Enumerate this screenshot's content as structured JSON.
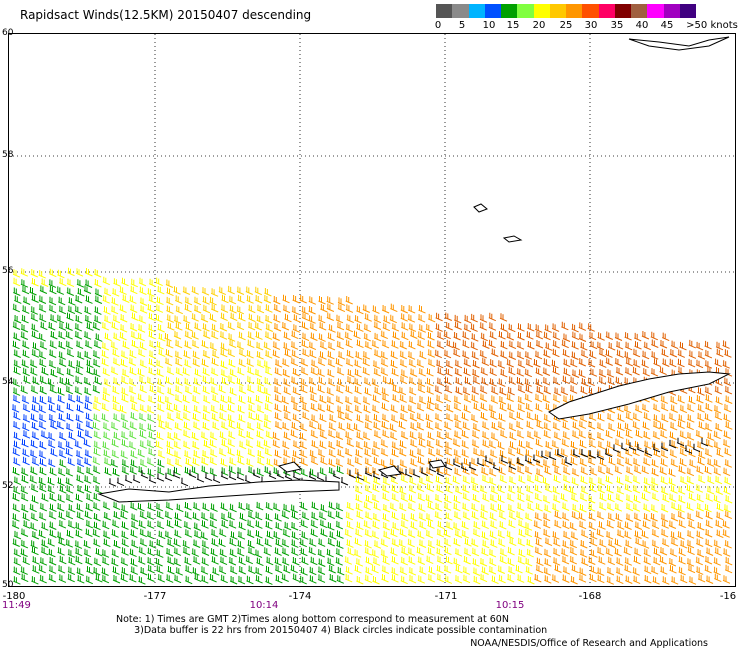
{
  "title": "Rapidsact Winds(12.5KM) 20150407 descending",
  "colorbar": {
    "colors": [
      "#555555",
      "#8a8a8a",
      "#00b4ff",
      "#0050ff",
      "#00a000",
      "#80ff40",
      "#ffff00",
      "#ffc800",
      "#ff9600",
      "#ff5000",
      "#ff0064",
      "#800000",
      "#a06040",
      "#ff00ff",
      "#a000c0",
      "#400080"
    ],
    "labels": [
      "0",
      "5",
      "10",
      "15",
      "20",
      "25",
      "30",
      "35",
      "40",
      "45",
      ">50 knots"
    ]
  },
  "lat_labels": [
    "60",
    "58",
    "56",
    "54",
    "52",
    "50"
  ],
  "lon_labels": [
    "-180",
    "-177",
    "-174",
    "-171",
    "-168",
    "-16"
  ],
  "time_labels": {
    "left": "11:49",
    "t1": "10:14",
    "t2": "10:15"
  },
  "notes": "Note: 1) Times are GMT 2)Times along bottom correspond to measurement at 60N\n      3)Data buffer is 22 hrs from 20150407 4) Black circles indicate possible contamination",
  "credit": "NOAA/NESDIS/Office of Research and Applications",
  "legend_colors": {
    "blue": "#0040ff",
    "green": "#00a000",
    "light_green": "#60e040",
    "yellow": "#ffff00",
    "gold": "#ffd000",
    "orange": "#ff9600",
    "dark_orange": "#e06000",
    "red": "#ff3030",
    "magenta": "#ff0080",
    "black": "#000000"
  }
}
